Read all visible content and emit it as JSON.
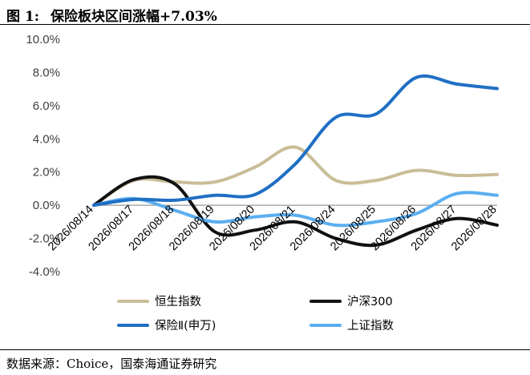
{
  "figure": {
    "label": "图 1:",
    "title": "保险板块区间涨幅+7.03%",
    "source": "数据来源：Choice，国泰海通证券研究"
  },
  "chart_data": {
    "type": "line",
    "categories": [
      "2026/08/14",
      "2026/08/17",
      "2026/08/18",
      "2026/08/19",
      "2026/08/20",
      "2026/08/21",
      "2026/08/24",
      "2026/08/25",
      "2026/08/26",
      "2026/08/27",
      "2026/08/28"
    ],
    "yticks": [
      "10.0%",
      "8.0%",
      "6.0%",
      "4.0%",
      "2.0%",
      "0.0%",
      "-2.0%",
      "-4.0%"
    ],
    "ylim": [
      -4,
      10
    ],
    "grid": false,
    "legend_position": "bottom",
    "series": [
      {
        "name": "恒生指数",
        "color": "#c9bd98",
        "values": [
          0.0,
          1.5,
          1.4,
          1.4,
          2.3,
          3.5,
          1.5,
          1.5,
          2.1,
          1.8,
          1.85
        ]
      },
      {
        "name": "沪深300",
        "color": "#111111",
        "values": [
          0.0,
          1.55,
          1.3,
          -1.6,
          -1.5,
          -1.0,
          -2.0,
          -2.4,
          -1.5,
          -0.8,
          -1.2
        ]
      },
      {
        "name": "保险Ⅱ(申万)",
        "color": "#1f6fc4",
        "values": [
          0.0,
          0.35,
          0.3,
          0.6,
          0.65,
          2.5,
          5.3,
          5.5,
          7.7,
          7.3,
          7.03
        ]
      },
      {
        "name": "上证指数",
        "color": "#5aaef0",
        "values": [
          0.0,
          0.4,
          -0.3,
          -1.0,
          -0.7,
          -0.6,
          -1.2,
          -1.0,
          -0.5,
          0.7,
          0.6
        ]
      }
    ]
  }
}
